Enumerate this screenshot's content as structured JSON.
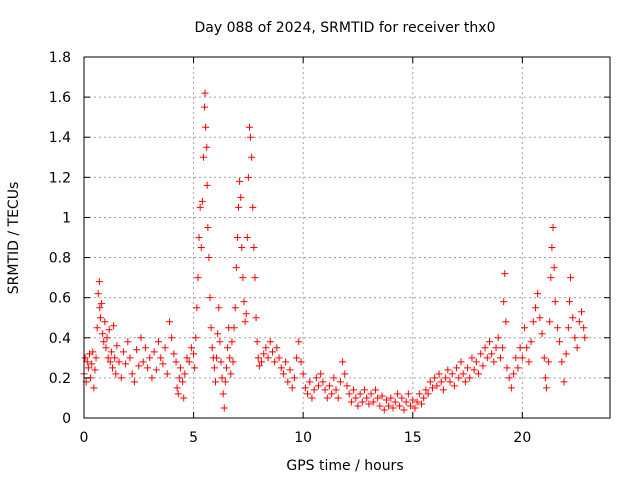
{
  "chart_data": {
    "type": "scatter",
    "title": "Day 088 of 2024, SRMTID for receiver thx0",
    "xlabel": "GPS time / hours",
    "ylabel": "SRMTID / TECUs",
    "xlim": [
      0,
      24
    ],
    "ylim": [
      0,
      1.8
    ],
    "xticks": [
      0,
      5,
      10,
      15,
      20
    ],
    "xtick_labels": [
      "0",
      "5",
      "10",
      "15",
      "20"
    ],
    "yticks": [
      0,
      0.2,
      0.4,
      0.6,
      0.8,
      1.0,
      1.2,
      1.4,
      1.6,
      1.8
    ],
    "ytick_labels": [
      "0",
      "0.2",
      "0.4",
      "0.6",
      "0.8",
      "1",
      "1.2",
      "1.4",
      "1.6",
      "1.8"
    ],
    "grid": true,
    "marker": "+",
    "color": "#ff0000",
    "series": [
      {
        "name": "SRMTID",
        "points": [
          [
            0.0,
            0.22
          ],
          [
            0.05,
            0.3
          ],
          [
            0.1,
            0.18
          ],
          [
            0.15,
            0.28
          ],
          [
            0.2,
            0.25
          ],
          [
            0.25,
            0.32
          ],
          [
            0.3,
            0.2
          ],
          [
            0.35,
            0.27
          ],
          [
            0.4,
            0.33
          ],
          [
            0.45,
            0.15
          ],
          [
            0.5,
            0.24
          ],
          [
            0.55,
            0.3
          ],
          [
            0.6,
            0.45
          ],
          [
            0.65,
            0.62
          ],
          [
            0.7,
            0.68
          ],
          [
            0.72,
            0.55
          ],
          [
            0.75,
            0.5
          ],
          [
            0.8,
            0.57
          ],
          [
            0.85,
            0.42
          ],
          [
            0.9,
            0.38
          ],
          [
            0.95,
            0.48
          ],
          [
            1.0,
            0.35
          ],
          [
            1.05,
            0.4
          ],
          [
            1.1,
            0.3
          ],
          [
            1.15,
            0.44
          ],
          [
            1.2,
            0.28
          ],
          [
            1.25,
            0.33
          ],
          [
            1.3,
            0.25
          ],
          [
            1.35,
            0.46
          ],
          [
            1.4,
            0.3
          ],
          [
            1.45,
            0.22
          ],
          [
            1.5,
            0.36
          ],
          [
            1.6,
            0.28
          ],
          [
            1.7,
            0.2
          ],
          [
            1.8,
            0.33
          ],
          [
            1.9,
            0.27
          ],
          [
            2.0,
            0.38
          ],
          [
            2.1,
            0.3
          ],
          [
            2.2,
            0.22
          ],
          [
            2.3,
            0.18
          ],
          [
            2.4,
            0.34
          ],
          [
            2.5,
            0.26
          ],
          [
            2.6,
            0.4
          ],
          [
            2.7,
            0.28
          ],
          [
            2.8,
            0.35
          ],
          [
            2.9,
            0.25
          ],
          [
            3.0,
            0.3
          ],
          [
            3.1,
            0.2
          ],
          [
            3.2,
            0.33
          ],
          [
            3.3,
            0.24
          ],
          [
            3.4,
            0.38
          ],
          [
            3.5,
            0.3
          ],
          [
            3.6,
            0.27
          ],
          [
            3.7,
            0.35
          ],
          [
            3.8,
            0.22
          ],
          [
            3.9,
            0.48
          ],
          [
            4.0,
            0.4
          ],
          [
            4.1,
            0.32
          ],
          [
            4.2,
            0.28
          ],
          [
            4.25,
            0.15
          ],
          [
            4.3,
            0.12
          ],
          [
            4.35,
            0.2
          ],
          [
            4.4,
            0.25
          ],
          [
            4.5,
            0.18
          ],
          [
            4.55,
            0.1
          ],
          [
            4.6,
            0.22
          ],
          [
            4.7,
            0.3
          ],
          [
            4.8,
            0.28
          ],
          [
            4.9,
            0.35
          ],
          [
            5.0,
            0.32
          ],
          [
            5.05,
            0.25
          ],
          [
            5.1,
            0.4
          ],
          [
            5.15,
            0.55
          ],
          [
            5.2,
            0.7
          ],
          [
            5.25,
            0.9
          ],
          [
            5.3,
            1.05
          ],
          [
            5.35,
            0.85
          ],
          [
            5.4,
            1.08
          ],
          [
            5.45,
            1.3
          ],
          [
            5.5,
            1.55
          ],
          [
            5.52,
            1.62
          ],
          [
            5.55,
            1.45
          ],
          [
            5.6,
            1.35
          ],
          [
            5.62,
            1.16
          ],
          [
            5.65,
            0.95
          ],
          [
            5.7,
            0.8
          ],
          [
            5.75,
            0.6
          ],
          [
            5.8,
            0.45
          ],
          [
            5.85,
            0.35
          ],
          [
            5.9,
            0.3
          ],
          [
            5.95,
            0.25
          ],
          [
            6.0,
            0.18
          ],
          [
            6.05,
            0.3
          ],
          [
            6.1,
            0.42
          ],
          [
            6.15,
            0.55
          ],
          [
            6.2,
            0.38
          ],
          [
            6.25,
            0.28
          ],
          [
            6.3,
            0.2
          ],
          [
            6.35,
            0.12
          ],
          [
            6.4,
            0.05
          ],
          [
            6.45,
            0.18
          ],
          [
            6.5,
            0.25
          ],
          [
            6.55,
            0.35
          ],
          [
            6.6,
            0.45
          ],
          [
            6.65,
            0.3
          ],
          [
            6.7,
            0.22
          ],
          [
            6.75,
            0.38
          ],
          [
            6.8,
            0.28
          ],
          [
            6.85,
            0.45
          ],
          [
            6.9,
            0.55
          ],
          [
            6.95,
            0.75
          ],
          [
            7.0,
            0.9
          ],
          [
            7.05,
            1.05
          ],
          [
            7.1,
            1.18
          ],
          [
            7.15,
            1.1
          ],
          [
            7.2,
            0.85
          ],
          [
            7.25,
            0.7
          ],
          [
            7.3,
            0.58
          ],
          [
            7.35,
            0.48
          ],
          [
            7.4,
            0.52
          ],
          [
            7.45,
            0.9
          ],
          [
            7.5,
            1.2
          ],
          [
            7.55,
            1.45
          ],
          [
            7.6,
            1.4
          ],
          [
            7.65,
            1.3
          ],
          [
            7.7,
            1.05
          ],
          [
            7.75,
            0.85
          ],
          [
            7.8,
            0.7
          ],
          [
            7.85,
            0.5
          ],
          [
            7.9,
            0.38
          ],
          [
            7.95,
            0.3
          ],
          [
            8.0,
            0.26
          ],
          [
            8.1,
            0.28
          ],
          [
            8.2,
            0.32
          ],
          [
            8.3,
            0.35
          ],
          [
            8.4,
            0.3
          ],
          [
            8.5,
            0.38
          ],
          [
            8.6,
            0.33
          ],
          [
            8.7,
            0.28
          ],
          [
            8.8,
            0.35
          ],
          [
            8.9,
            0.3
          ],
          [
            9.0,
            0.25
          ],
          [
            9.1,
            0.22
          ],
          [
            9.2,
            0.28
          ],
          [
            9.3,
            0.18
          ],
          [
            9.4,
            0.24
          ],
          [
            9.5,
            0.15
          ],
          [
            9.6,
            0.2
          ],
          [
            9.7,
            0.3
          ],
          [
            9.8,
            0.38
          ],
          [
            9.9,
            0.28
          ],
          [
            10.0,
            0.22
          ],
          [
            10.1,
            0.15
          ],
          [
            10.2,
            0.12
          ],
          [
            10.3,
            0.18
          ],
          [
            10.4,
            0.1
          ],
          [
            10.5,
            0.14
          ],
          [
            10.6,
            0.2
          ],
          [
            10.7,
            0.16
          ],
          [
            10.8,
            0.22
          ],
          [
            10.9,
            0.18
          ],
          [
            11.0,
            0.14
          ],
          [
            11.1,
            0.1
          ],
          [
            11.2,
            0.16
          ],
          [
            11.3,
            0.12
          ],
          [
            11.4,
            0.2
          ],
          [
            11.5,
            0.14
          ],
          [
            11.6,
            0.1
          ],
          [
            11.7,
            0.18
          ],
          [
            11.8,
            0.28
          ],
          [
            11.9,
            0.22
          ],
          [
            12.0,
            0.16
          ],
          [
            12.1,
            0.12
          ],
          [
            12.2,
            0.08
          ],
          [
            12.3,
            0.14
          ],
          [
            12.4,
            0.1
          ],
          [
            12.5,
            0.06
          ],
          [
            12.6,
            0.12
          ],
          [
            12.7,
            0.08
          ],
          [
            12.8,
            0.14
          ],
          [
            12.9,
            0.1
          ],
          [
            13.0,
            0.07
          ],
          [
            13.1,
            0.12
          ],
          [
            13.2,
            0.08
          ],
          [
            13.3,
            0.14
          ],
          [
            13.4,
            0.1
          ],
          [
            13.5,
            0.06
          ],
          [
            13.6,
            0.11
          ],
          [
            13.7,
            0.04
          ],
          [
            13.8,
            0.09
          ],
          [
            13.9,
            0.06
          ],
          [
            14.0,
            0.1
          ],
          [
            14.1,
            0.05
          ],
          [
            14.2,
            0.08
          ],
          [
            14.3,
            0.12
          ],
          [
            14.4,
            0.06
          ],
          [
            14.5,
            0.1
          ],
          [
            14.6,
            0.04
          ],
          [
            14.7,
            0.08
          ],
          [
            14.8,
            0.12
          ],
          [
            14.9,
            0.06
          ],
          [
            15.0,
            0.09
          ],
          [
            15.1,
            0.05
          ],
          [
            15.2,
            0.08
          ],
          [
            15.3,
            0.12
          ],
          [
            15.4,
            0.07
          ],
          [
            15.5,
            0.1
          ],
          [
            15.6,
            0.14
          ],
          [
            15.7,
            0.12
          ],
          [
            15.8,
            0.18
          ],
          [
            15.9,
            0.15
          ],
          [
            16.0,
            0.2
          ],
          [
            16.1,
            0.16
          ],
          [
            16.2,
            0.22
          ],
          [
            16.3,
            0.18
          ],
          [
            16.4,
            0.14
          ],
          [
            16.5,
            0.2
          ],
          [
            16.6,
            0.24
          ],
          [
            16.7,
            0.18
          ],
          [
            16.8,
            0.22
          ],
          [
            16.9,
            0.16
          ],
          [
            17.0,
            0.25
          ],
          [
            17.1,
            0.2
          ],
          [
            17.2,
            0.28
          ],
          [
            17.3,
            0.22
          ],
          [
            17.4,
            0.18
          ],
          [
            17.5,
            0.25
          ],
          [
            17.6,
            0.2
          ],
          [
            17.7,
            0.3
          ],
          [
            17.8,
            0.24
          ],
          [
            17.9,
            0.28
          ],
          [
            18.0,
            0.22
          ],
          [
            18.1,
            0.32
          ],
          [
            18.2,
            0.26
          ],
          [
            18.3,
            0.35
          ],
          [
            18.4,
            0.3
          ],
          [
            18.5,
            0.38
          ],
          [
            18.6,
            0.32
          ],
          [
            18.7,
            0.28
          ],
          [
            18.8,
            0.35
          ],
          [
            18.9,
            0.4
          ],
          [
            19.0,
            0.3
          ],
          [
            19.1,
            0.35
          ],
          [
            19.15,
            0.58
          ],
          [
            19.2,
            0.72
          ],
          [
            19.25,
            0.48
          ],
          [
            19.3,
            0.25
          ],
          [
            19.4,
            0.2
          ],
          [
            19.5,
            0.15
          ],
          [
            19.6,
            0.22
          ],
          [
            19.7,
            0.3
          ],
          [
            19.8,
            0.25
          ],
          [
            19.9,
            0.35
          ],
          [
            20.0,
            0.3
          ],
          [
            20.1,
            0.45
          ],
          [
            20.2,
            0.35
          ],
          [
            20.3,
            0.28
          ],
          [
            20.4,
            0.38
          ],
          [
            20.5,
            0.48
          ],
          [
            20.6,
            0.55
          ],
          [
            20.7,
            0.62
          ],
          [
            20.8,
            0.5
          ],
          [
            20.9,
            0.42
          ],
          [
            21.0,
            0.3
          ],
          [
            21.05,
            0.2
          ],
          [
            21.1,
            0.15
          ],
          [
            21.2,
            0.28
          ],
          [
            21.25,
            0.48
          ],
          [
            21.3,
            0.7
          ],
          [
            21.35,
            0.85
          ],
          [
            21.4,
            0.95
          ],
          [
            21.45,
            0.75
          ],
          [
            21.5,
            0.58
          ],
          [
            21.6,
            0.45
          ],
          [
            21.7,
            0.38
          ],
          [
            21.8,
            0.28
          ],
          [
            21.9,
            0.18
          ],
          [
            22.0,
            0.32
          ],
          [
            22.1,
            0.45
          ],
          [
            22.15,
            0.58
          ],
          [
            22.2,
            0.7
          ],
          [
            22.3,
            0.5
          ],
          [
            22.4,
            0.4
          ],
          [
            22.5,
            0.35
          ],
          [
            22.6,
            0.48
          ],
          [
            22.7,
            0.53
          ],
          [
            22.8,
            0.45
          ],
          [
            22.85,
            0.4
          ]
        ]
      }
    ]
  }
}
